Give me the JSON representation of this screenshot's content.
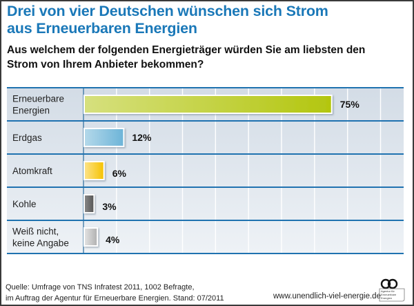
{
  "header": {
    "title_line1": "Drei von vier Deutschen wünschen sich Strom",
    "title_line2": "aus Erneuerbaren Energien",
    "question_line1": "Aus welchem der folgenden Energieträger würden Sie am liebsten den",
    "question_line2": "Strom von Ihrem Anbieter bekommen?"
  },
  "chart_data": {
    "type": "bar",
    "orientation": "horizontal",
    "title": "Drei von vier Deutschen wünschen sich Strom aus Erneuerbaren Energien",
    "subtitle": "Aus welchem der folgenden Energieträger würden Sie am liebsten den Strom von Ihrem Anbieter bekommen?",
    "xlabel": "",
    "ylabel": "",
    "unit": "%",
    "xlim": [
      0,
      97
    ],
    "grid": true,
    "legend": "none",
    "categories": [
      {
        "lines": [
          "Erneuerbare",
          "Energien"
        ]
      },
      {
        "lines": [
          "Erdgas"
        ]
      },
      {
        "lines": [
          "Atomkraft"
        ]
      },
      {
        "lines": [
          "Kohle"
        ]
      },
      {
        "lines": [
          "Weiß nicht,",
          "keine Angabe"
        ]
      }
    ],
    "values": [
      75,
      12,
      6,
      3,
      4
    ],
    "value_labels": [
      "75%",
      "12%",
      "6%",
      "3%",
      "4%"
    ],
    "colors": [
      [
        "#d6e07e",
        "#b3c60f"
      ],
      [
        "#b5d9ea",
        "#6cb4d8"
      ],
      [
        "#fde38a",
        "#f5c200"
      ],
      [
        "#8a8a8a",
        "#555555"
      ],
      [
        "#e4e4e4",
        "#b0b0b0"
      ]
    ]
  },
  "footer": {
    "source_line1": "Quelle: Umfrage von TNS Infratest 2011, 1002 Befragte,",
    "source_line2": "im Auftrag der Agentur für Erneuerbare Energien. Stand: 07/2011",
    "url": "www.unendlich-viel-energie.de",
    "logo_text_line1": "Agentur für",
    "logo_text_line2": "Erneuerbare",
    "logo_text_line3": "Energien"
  }
}
